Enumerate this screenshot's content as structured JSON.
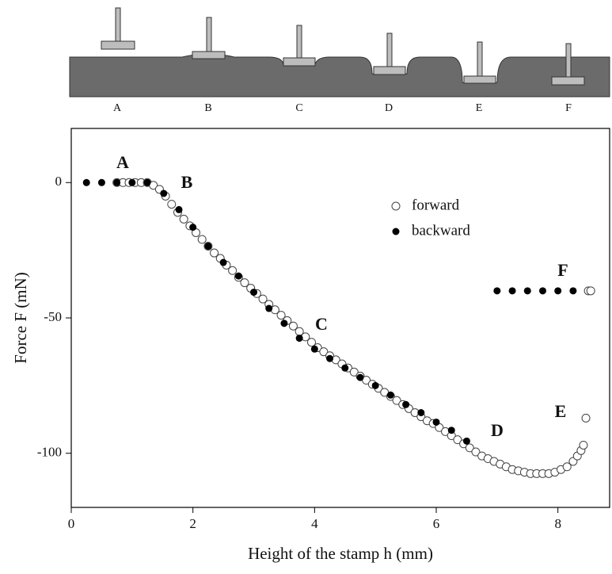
{
  "schematic": {
    "labels": [
      "A",
      "B",
      "C",
      "D",
      "E",
      "F"
    ]
  },
  "chart_data": {
    "type": "scatter",
    "xlabel": "Height of the stamp h (mm)",
    "ylabel": "Force F (mN)",
    "xlim": [
      0,
      8.85
    ],
    "ylim": [
      -120,
      20
    ],
    "xticks": [
      0,
      2,
      4,
      6,
      8
    ],
    "yticks": [
      0,
      -50,
      -100
    ],
    "legend": "upper right",
    "annotations": [
      "A",
      "B",
      "C",
      "D",
      "E",
      "F"
    ],
    "series": [
      {
        "name": "forward",
        "color": "#444444",
        "marker": "open",
        "x": [
          0.75,
          0.85,
          0.95,
          1.05,
          1.15,
          1.25,
          1.35,
          1.45,
          1.55,
          1.65,
          1.75,
          1.85,
          1.95,
          2.05,
          2.15,
          2.25,
          2.35,
          2.45,
          2.55,
          2.65,
          2.75,
          2.85,
          2.95,
          3.05,
          3.15,
          3.25,
          3.35,
          3.45,
          3.55,
          3.65,
          3.75,
          3.85,
          3.95,
          4.05,
          4.15,
          4.25,
          4.35,
          4.45,
          4.55,
          4.65,
          4.75,
          4.85,
          4.95,
          5.05,
          5.15,
          5.25,
          5.35,
          5.45,
          5.55,
          5.65,
          5.75,
          5.85,
          5.95,
          6.05,
          6.15,
          6.25,
          6.35,
          6.45,
          6.55,
          6.65,
          6.75,
          6.85,
          6.95,
          7.05,
          7.15,
          7.25,
          7.35,
          7.45,
          7.55,
          7.65,
          7.75,
          7.85,
          7.95,
          8.05,
          8.15,
          8.25,
          8.32,
          8.38,
          8.42,
          8.46,
          8.5,
          8.54
        ],
        "values": [
          0,
          0,
          0,
          0,
          0,
          0,
          -1,
          -2.5,
          -5,
          -8,
          -11,
          -13.5,
          -16,
          -18.5,
          -21,
          -23.5,
          -26,
          -28,
          -30.5,
          -32.5,
          -35,
          -37,
          -39,
          -41,
          -43,
          -45,
          -47,
          -49,
          -51,
          -53,
          -55,
          -57,
          -59,
          -61,
          -62.5,
          -64,
          -65.5,
          -67,
          -68.5,
          -70,
          -71.5,
          -73,
          -74.5,
          -76,
          -77.5,
          -79,
          -80.5,
          -82,
          -83.5,
          -85,
          -86.5,
          -88,
          -89,
          -90.5,
          -92,
          -93.5,
          -95,
          -96.5,
          -98,
          -99.5,
          -101,
          -102,
          -103,
          -104,
          -105,
          -106,
          -106.5,
          -107,
          -107.5,
          -107.5,
          -107.5,
          -107.5,
          -107,
          -106,
          -105,
          -103,
          -101,
          -99,
          -97,
          -87,
          -40,
          -40
        ]
      },
      {
        "name": "backward",
        "color": "#000000",
        "marker": "filled",
        "x": [
          0.25,
          0.5,
          0.75,
          1.0,
          1.25,
          1.52,
          1.77,
          2.0,
          2.25,
          2.5,
          2.75,
          3.0,
          3.25,
          3.5,
          3.75,
          4.0,
          4.25,
          4.5,
          4.75,
          5.0,
          5.25,
          5.5,
          5.75,
          6.0,
          6.25,
          6.5,
          7.0,
          7.25,
          7.5,
          7.75,
          8.0,
          8.25
        ],
        "values": [
          0,
          0,
          0,
          0,
          0,
          -4,
          -10,
          -16.5,
          -23.5,
          -29.5,
          -34.5,
          -40.5,
          -46.5,
          -52,
          -57.5,
          -61.5,
          -65,
          -68.5,
          -72,
          -75,
          -78.5,
          -82,
          -85,
          -88.5,
          -91.5,
          -95.5,
          -40,
          -40,
          -40,
          -40,
          -40,
          -40
        ]
      }
    ]
  }
}
